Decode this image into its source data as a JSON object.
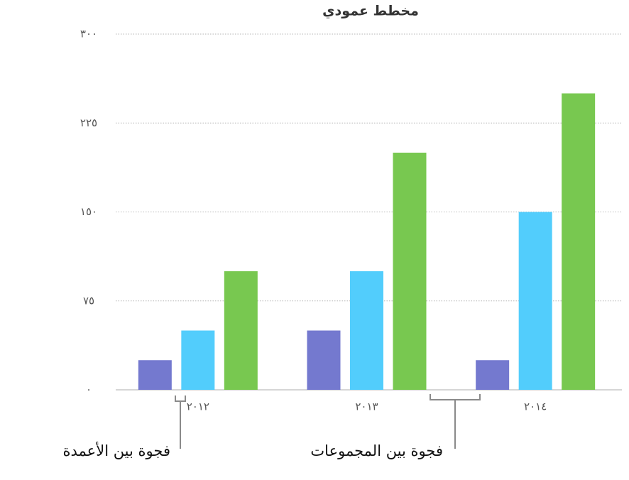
{
  "chart_data": {
    "type": "bar",
    "title": "مخطط عمودي",
    "categories": [
      "٢٠١٢",
      "٢٠١٣",
      "٢٠١٤"
    ],
    "series": [
      {
        "color": "#7479cf",
        "values": [
          25,
          50,
          25
        ]
      },
      {
        "color": "#52cdfc",
        "values": [
          50,
          100,
          150
        ]
      },
      {
        "color": "#78c850",
        "values": [
          100,
          200,
          250
        ]
      }
    ],
    "ylim": [
      0,
      300
    ],
    "yticks": [
      {
        "value": 0,
        "label": "٠"
      },
      {
        "value": 75,
        "label": "٧٥"
      },
      {
        "value": 150,
        "label": "١٥٠"
      },
      {
        "value": 225,
        "label": "٢٢٥"
      },
      {
        "value": 300,
        "label": "٣٠٠"
      }
    ],
    "grid": true,
    "annotations": [
      "فجوة بين الأعمدة",
      "فجوة بين المجموعات"
    ]
  }
}
